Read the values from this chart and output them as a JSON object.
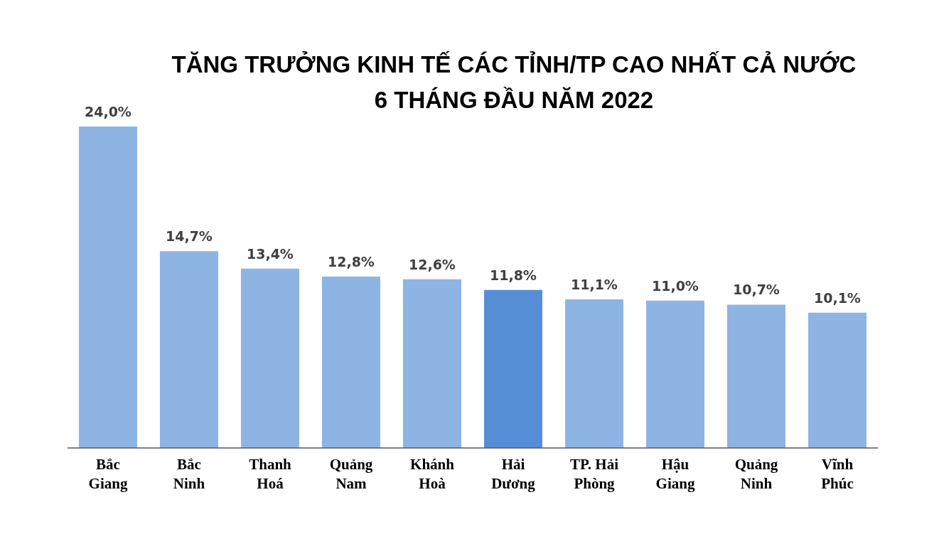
{
  "chart_data": {
    "type": "bar",
    "title": "TĂNG TRƯỞNG KINH TẾ CÁC TỈNH/TP CAO NHẤT CẢ NƯỚC\n6 THÁNG ĐẦU NĂM 2022",
    "categories": [
      "Bắc Giang",
      "Bắc Ninh",
      "Thanh Hoá",
      "Quảng Nam",
      "Khánh Hoà",
      "Hải Dương",
      "TP. Hải Phòng",
      "Hậu Giang",
      "Quảng Ninh",
      "Vĩnh Phúc"
    ],
    "values": [
      24.0,
      14.7,
      13.4,
      12.8,
      12.6,
      11.8,
      11.1,
      11.0,
      10.7,
      10.1
    ],
    "colors": [
      "#8eb4e3",
      "#8eb4e3",
      "#8eb4e3",
      "#8eb4e3",
      "#8eb4e3",
      "#558ed5",
      "#8eb4e3",
      "#8eb4e3",
      "#8eb4e3",
      "#8eb4e3"
    ],
    "value_labels": [
      "24,0%",
      "14,7%",
      "13,4%",
      "12,8%",
      "12,6%",
      "11,8%",
      "11,1%",
      "11,0%",
      "10,7%",
      "10,1%"
    ],
    "grid": false,
    "legend": false
  }
}
